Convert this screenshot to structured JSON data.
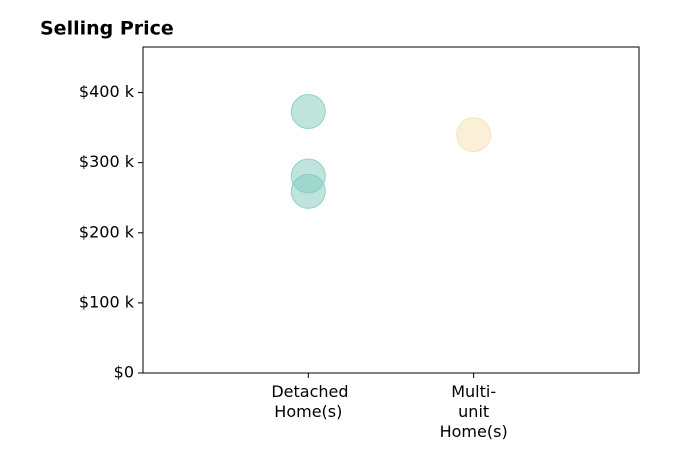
{
  "chart_data": {
    "type": "scatter",
    "title": "Selling Price",
    "series": [
      {
        "category": "Detached Home(s)",
        "color": "#7fc9bc",
        "values": [
          373000,
          281000,
          259000
        ]
      },
      {
        "category": "Multi-unit Home(s)",
        "color": "#f5dfb0",
        "values": [
          340000
        ]
      }
    ],
    "ylim": [
      0,
      465000
    ],
    "yticks": [
      {
        "value": 0,
        "label": "$0"
      },
      {
        "value": 100000,
        "label": "$100 k"
      },
      {
        "value": 200000,
        "label": "$200 k"
      },
      {
        "value": 300000,
        "label": "$300 k"
      },
      {
        "value": 400000,
        "label": "$400 k"
      }
    ],
    "grid": false
  }
}
